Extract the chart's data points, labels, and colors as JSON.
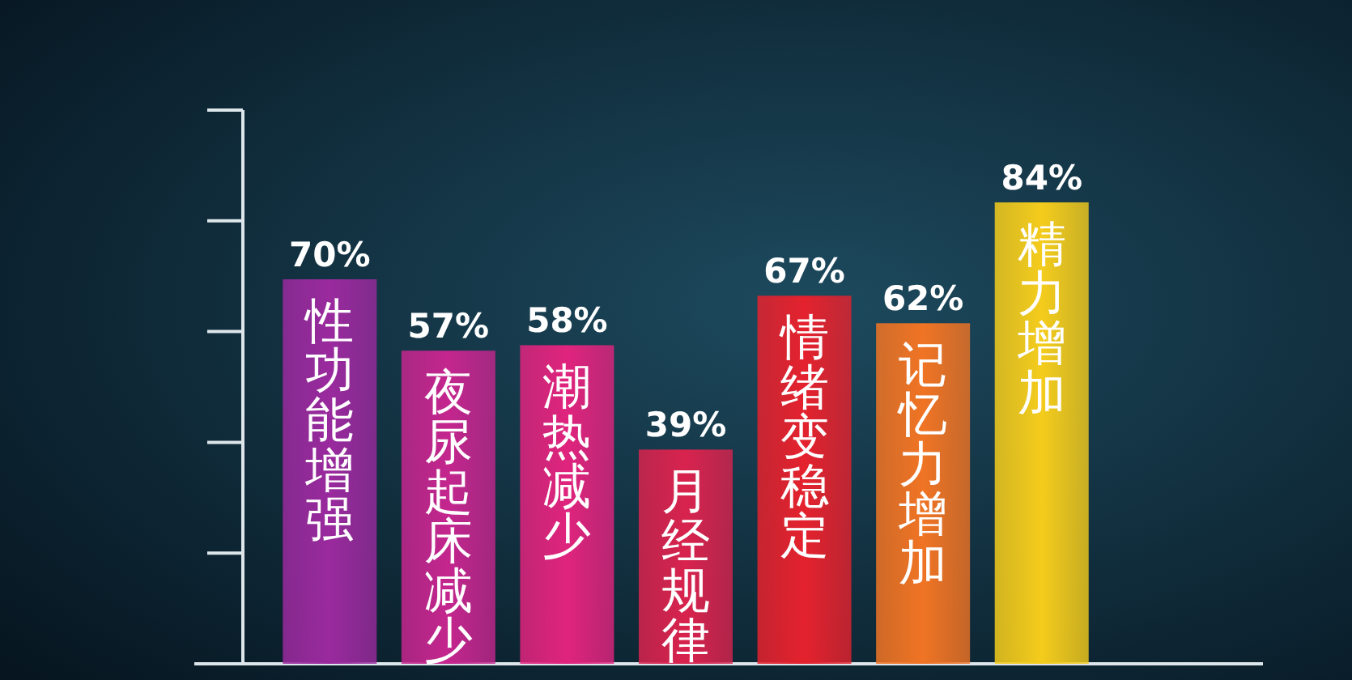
{
  "chart_data": {
    "type": "bar",
    "categories": [
      "性功能增强",
      "夜尿起床减少",
      "潮热减少",
      "月经规律",
      "情绪变稳定",
      "记忆力增加",
      "精力增加"
    ],
    "values": [
      70,
      57,
      58,
      39,
      67,
      62,
      84
    ],
    "colors": [
      "#9a2a9e",
      "#c4268e",
      "#e0247e",
      "#d8234e",
      "#e4222e",
      "#f07424",
      "#f4cc1c"
    ],
    "value_labels": [
      "70%",
      "57%",
      "58%",
      "39%",
      "67%",
      "62%",
      "84%"
    ]
  }
}
